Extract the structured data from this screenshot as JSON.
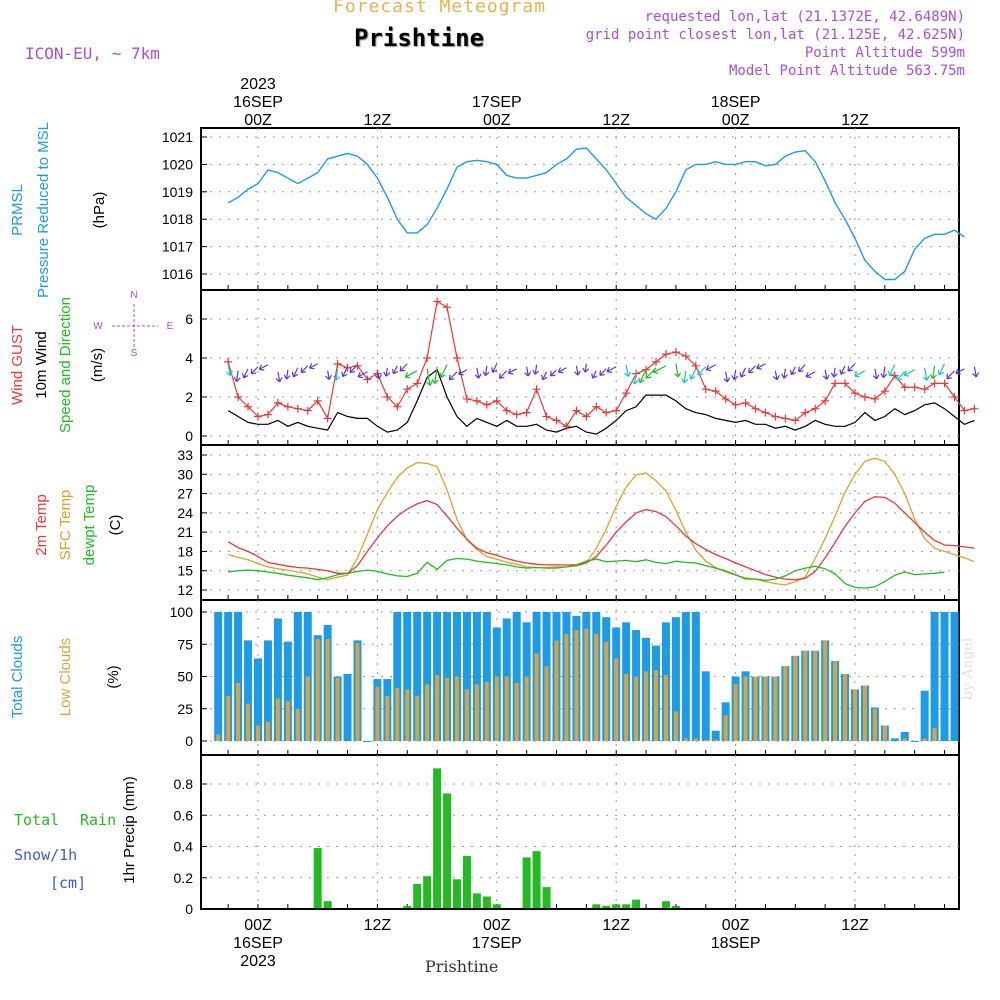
{
  "header": {
    "title": "Forecast Meteogram",
    "location": "Prishtine",
    "model": "ICON-EU, ~ 7km",
    "requested": "requested lon,lat (21.1372E, 42.6489N)",
    "grid_point": "grid point closest lon,lat (21.125E, 42.625N)",
    "point_altitude": "Point Altitude 599m",
    "model_altitude": "Model Point Altitude 563.75m",
    "footer_location": "Prishtine",
    "watermark": "by Angel"
  },
  "colors": {
    "pressure": "#1e9be6",
    "gust": "#e83a3a",
    "wind": "#000000",
    "direction": "#22bb22",
    "temp2m": "#e83a3a",
    "sfc": "#e0a02a",
    "dewpt": "#22bb22",
    "total_clouds": "#1e9be6",
    "low_clouds": "#d7a445",
    "rain": "#22bb22",
    "snow": "#3b5bdb",
    "header_gold": "#e6b24d",
    "header_purple": "#a84fd6"
  },
  "time_axis": {
    "top_labels": [
      {
        "t": 0,
        "lines": [
          "2023",
          "16SEP",
          "00Z"
        ]
      },
      {
        "t": 12,
        "lines": [
          "12Z"
        ]
      },
      {
        "t": 24,
        "lines": [
          "17SEP",
          "00Z"
        ]
      },
      {
        "t": 36,
        "lines": [
          "12Z"
        ]
      },
      {
        "t": 48,
        "lines": [
          "18SEP",
          "00Z"
        ]
      },
      {
        "t": 60,
        "lines": [
          "12Z"
        ]
      }
    ],
    "bottom_labels": [
      {
        "t": 0,
        "lines": [
          "00Z",
          "16SEP",
          "2023"
        ]
      },
      {
        "t": 12,
        "lines": [
          "12Z"
        ]
      },
      {
        "t": 24,
        "lines": [
          "00Z",
          "17SEP"
        ]
      },
      {
        "t": 36,
        "lines": [
          "12Z"
        ]
      },
      {
        "t": 48,
        "lines": [
          "00Z",
          "18SEP"
        ]
      },
      {
        "t": 60,
        "lines": [
          "12Z"
        ]
      }
    ]
  },
  "panel_labels": {
    "pressure": [
      "PRMSL",
      "Pressure Reduced to MSL",
      "(hPa)"
    ],
    "wind": [
      "Wind GUST",
      "10m Wind",
      "Speed and Direction",
      "(m/s)"
    ],
    "compass": [
      "N",
      "W",
      "E",
      "S"
    ],
    "temp": [
      "2m Temp",
      "SFC Temp",
      "dewpt Temp",
      "(C)"
    ],
    "clouds": [
      "Total Clouds",
      "Low Clouds",
      "(%)"
    ],
    "precip_left": [
      "Total",
      "Rain",
      "Snow/1h",
      "[cm]"
    ],
    "precip_axis": "1hr Precip (mm)"
  },
  "chart_data": [
    {
      "type": "line",
      "title": "PRMSL Pressure Reduced to MSL",
      "ylabel": "(hPa)",
      "ylim": [
        1015.5,
        1021
      ],
      "yticks": [
        1016,
        1017,
        1018,
        1019,
        1020,
        1021
      ],
      "x_hours_start": -3,
      "series": [
        {
          "name": "PRMSL",
          "values": [
            1018.6,
            1018.8,
            1019.1,
            1019.3,
            1019.8,
            1019.7,
            1019.5,
            1019.3,
            1019.5,
            1019.7,
            1020.2,
            1020.3,
            1020.4,
            1020.3,
            1020.0,
            1019.5,
            1018.8,
            1018.0,
            1017.5,
            1017.5,
            1017.8,
            1018.4,
            1019.1,
            1019.9,
            1020.1,
            1020.15,
            1020.1,
            1020.0,
            1019.6,
            1019.5,
            1019.5,
            1019.6,
            1019.7,
            1020.0,
            1020.2,
            1020.55,
            1020.6,
            1020.2,
            1019.8,
            1019.3,
            1018.8,
            1018.5,
            1018.2,
            1018.0,
            1018.4,
            1019.0,
            1019.8,
            1020.0,
            1020.0,
            1020.1,
            1020.0,
            1020.0,
            1020.1,
            1020.1,
            1019.95,
            1020.0,
            1020.3,
            1020.45,
            1020.5,
            1020.1,
            1019.4,
            1018.6,
            1018.0,
            1017.3,
            1016.5,
            1016.1,
            1015.8,
            1015.8,
            1016.1,
            1016.9,
            1017.3,
            1017.45,
            1017.45,
            1017.6,
            1017.35
          ]
        }
      ]
    },
    {
      "type": "line",
      "title": "Wind GUST / 10m Wind Speed and Direction",
      "ylabel": "(m/s)",
      "ylim": [
        0,
        7.2
      ],
      "yticks": [
        0,
        2,
        4,
        6
      ],
      "x_hours_start": -3,
      "series": [
        {
          "name": "Wind GUST",
          "values": [
            3.8,
            2.0,
            1.5,
            1.0,
            1.1,
            1.7,
            1.5,
            1.4,
            1.3,
            1.8,
            0.9,
            3.7,
            3.5,
            3.6,
            2.9,
            3.2,
            2.0,
            1.5,
            2.4,
            2.7,
            4.0,
            6.9,
            6.6,
            4.0,
            1.9,
            1.8,
            1.6,
            1.8,
            1.3,
            1.1,
            1.2,
            2.4,
            1.0,
            0.8,
            0.5,
            1.3,
            1.0,
            1.5,
            1.2,
            1.3,
            2.2,
            3.2,
            3.4,
            3.8,
            4.2,
            4.3,
            4.1,
            3.6,
            2.4,
            2.3,
            1.9,
            1.6,
            1.7,
            1.4,
            1.2,
            1.0,
            0.9,
            0.8,
            1.2,
            1.4,
            1.8,
            2.7,
            2.7,
            2.2,
            2.0,
            1.9,
            2.3,
            3.1,
            2.5,
            2.5,
            2.4,
            2.7,
            2.7,
            2.0,
            1.3,
            1.4
          ]
        },
        {
          "name": "10m Wind",
          "values": [
            1.3,
            1.0,
            0.7,
            0.6,
            0.6,
            0.8,
            0.5,
            0.7,
            0.5,
            0.4,
            0.3,
            1.2,
            1.0,
            0.9,
            0.9,
            0.5,
            0.2,
            0.3,
            0.7,
            1.8,
            3.0,
            3.4,
            2.0,
            1.0,
            0.5,
            0.9,
            0.7,
            0.5,
            0.8,
            0.5,
            0.5,
            0.6,
            0.3,
            0.2,
            0.4,
            0.5,
            0.2,
            0.1,
            0.4,
            0.8,
            1.3,
            1.5,
            2.1,
            2.1,
            2.1,
            1.8,
            1.4,
            1.2,
            1.1,
            0.9,
            0.8,
            0.7,
            0.8,
            0.6,
            0.6,
            0.4,
            0.5,
            0.3,
            0.5,
            0.8,
            0.6,
            0.5,
            0.5,
            0.7,
            1.2,
            0.8,
            1.0,
            1.4,
            1.1,
            1.3,
            1.6,
            1.7,
            1.4,
            1.0,
            0.6,
            0.8
          ]
        }
      ]
    },
    {
      "type": "line",
      "title": "2m Temp / SFC Temp / dewpt Temp",
      "ylabel": "(C)",
      "ylim": [
        12,
        33
      ],
      "yticks": [
        12,
        15,
        18,
        21,
        24,
        27,
        30,
        33
      ],
      "x_hours_start": -3,
      "series": [
        {
          "name": "2m Temp",
          "values": [
            19.5,
            18.6,
            18.0,
            17.2,
            16.3,
            16.0,
            15.7,
            15.5,
            15.4,
            15.2,
            15.0,
            14.6,
            14.6,
            15.8,
            18.0,
            20.1,
            22.0,
            23.5,
            24.6,
            25.4,
            25.9,
            25.3,
            23.5,
            21.6,
            19.9,
            18.5,
            17.8,
            17.4,
            16.9,
            16.5,
            16.2,
            16.0,
            15.9,
            15.9,
            15.9,
            15.9,
            16.2,
            17.2,
            19.0,
            21.0,
            22.6,
            24.0,
            24.5,
            24.2,
            23.4,
            22.0,
            20.4,
            19.2,
            18.3,
            17.5,
            16.9,
            16.2,
            15.6,
            15.0,
            14.4,
            14.0,
            13.7,
            13.6,
            13.8,
            14.9,
            17.0,
            19.4,
            21.9,
            24.0,
            25.8,
            26.5,
            26.4,
            25.5,
            24.0,
            22.5,
            21.0,
            19.7,
            19.0,
            18.9,
            18.7,
            18.5
          ]
        },
        {
          "name": "SFC Temp",
          "values": [
            17.5,
            17.1,
            16.7,
            16.1,
            15.6,
            15.3,
            15.1,
            14.8,
            14.5,
            14.0,
            13.6,
            14.0,
            14.3,
            17.0,
            20.7,
            24.5,
            27.2,
            29.5,
            31.0,
            31.8,
            31.7,
            31.2,
            27.6,
            23.0,
            19.8,
            18.3,
            17.2,
            16.8,
            16.3,
            16.0,
            15.6,
            15.5,
            15.5,
            15.6,
            15.6,
            15.7,
            16.2,
            18.5,
            21.5,
            25.0,
            28.0,
            29.9,
            30.2,
            29.0,
            27.4,
            24.4,
            21.0,
            18.2,
            16.5,
            15.5,
            14.8,
            14.3,
            13.9,
            13.7,
            13.3,
            13.0,
            12.8,
            13.3,
            14.0,
            16.9,
            20.0,
            23.5,
            27.2,
            30.0,
            32.0,
            32.5,
            32.0,
            30.0,
            27.0,
            23.0,
            20.0,
            18.5,
            18.0,
            17.5,
            17.0,
            16.4
          ]
        },
        {
          "name": "dewpt Temp",
          "values": [
            14.8,
            15.0,
            15.1,
            15.0,
            14.8,
            14.6,
            14.3,
            14.1,
            13.9,
            13.6,
            13.9,
            14.4,
            14.6,
            14.9,
            15.1,
            14.9,
            14.5,
            14.2,
            14.1,
            14.6,
            16.3,
            15.2,
            16.6,
            16.9,
            16.8,
            16.5,
            16.3,
            16.1,
            15.9,
            15.6,
            15.4,
            15.5,
            15.4,
            15.4,
            15.6,
            15.9,
            16.5,
            16.8,
            16.4,
            16.5,
            16.6,
            16.4,
            16.7,
            16.3,
            16.1,
            16.5,
            16.3,
            16.2,
            15.8,
            15.4,
            15.0,
            14.4,
            13.7,
            13.7,
            13.5,
            13.7,
            14.2,
            15.0,
            15.4,
            15.7,
            15.3,
            14.5,
            13.0,
            12.4,
            12.3,
            12.5,
            13.3,
            14.3,
            14.8,
            14.4,
            14.5,
            14.6,
            14.8
          ]
        }
      ]
    },
    {
      "type": "bar",
      "title": "Total Clouds / Low Clouds",
      "ylabel": "(%)",
      "ylim": [
        0,
        100
      ],
      "yticks": [
        0,
        25,
        50,
        75,
        100
      ],
      "x_hours_start": -4,
      "series": [
        {
          "name": "Total Clouds",
          "values": [
            100,
            100,
            100,
            78,
            64,
            78,
            95,
            77,
            100,
            100,
            82,
            90,
            50,
            52,
            78,
            0,
            48,
            48,
            100,
            100,
            100,
            100,
            100,
            100,
            100,
            100,
            100,
            100,
            88,
            95,
            100,
            92,
            100,
            100,
            100,
            100,
            97,
            100,
            100,
            96,
            88,
            92,
            86,
            80,
            74,
            92,
            96,
            100,
            100,
            54,
            8,
            30,
            50,
            54,
            50,
            50,
            50,
            58,
            66,
            70,
            70,
            78,
            62,
            52,
            40,
            43,
            26,
            12,
            2,
            7,
            0,
            39,
            100,
            100,
            100,
            100,
            100,
            100,
            98,
            100
          ]
        },
        {
          "name": "Low Clouds",
          "values": [
            5,
            35,
            45,
            29,
            12,
            15,
            33,
            31,
            25,
            50,
            79,
            79,
            49,
            0,
            76,
            0,
            42,
            35,
            41,
            40,
            35,
            44,
            51,
            49,
            50,
            40,
            44,
            46,
            50,
            50,
            45,
            50,
            68,
            58,
            78,
            83,
            86,
            87,
            83,
            77,
            64,
            52,
            50,
            54,
            55,
            51,
            23,
            2,
            2,
            1,
            1,
            20,
            44,
            50,
            50,
            50,
            50,
            58,
            66,
            70,
            70,
            78,
            62,
            52,
            40,
            43,
            25,
            12,
            0,
            2,
            0,
            2,
            10,
            0,
            0,
            0,
            5,
            0,
            0,
            0
          ]
        }
      ]
    },
    {
      "type": "bar",
      "title": "1hr Precip",
      "ylabel": "1hr Precip (mm)",
      "ylim": [
        0,
        0.98
      ],
      "yticks": [
        0,
        0.2,
        0.4,
        0.6,
        0.8
      ],
      "x_hours_start": -4,
      "series": [
        {
          "name": "Total Rain",
          "values": [
            0,
            0,
            0,
            0,
            0,
            0,
            0,
            0,
            0,
            0,
            0.39,
            0.05,
            0,
            0,
            0,
            0,
            0,
            0,
            0,
            0.02,
            0.16,
            0.21,
            0.9,
            0.74,
            0.19,
            0.34,
            0.1,
            0.08,
            0.03,
            0,
            0,
            0.33,
            0.37,
            0.14,
            0,
            0,
            0,
            0,
            0.03,
            0.02,
            0.03,
            0.03,
            0.06,
            0,
            0,
            0.05,
            0.02,
            0,
            0,
            0,
            0,
            0,
            0,
            0,
            0,
            0,
            0,
            0,
            0,
            0,
            0,
            0,
            0,
            0,
            0,
            0,
            0,
            0,
            0,
            0,
            0,
            0,
            0,
            0,
            0,
            0,
            0.01,
            0,
            0,
            0
          ]
        }
      ]
    }
  ]
}
